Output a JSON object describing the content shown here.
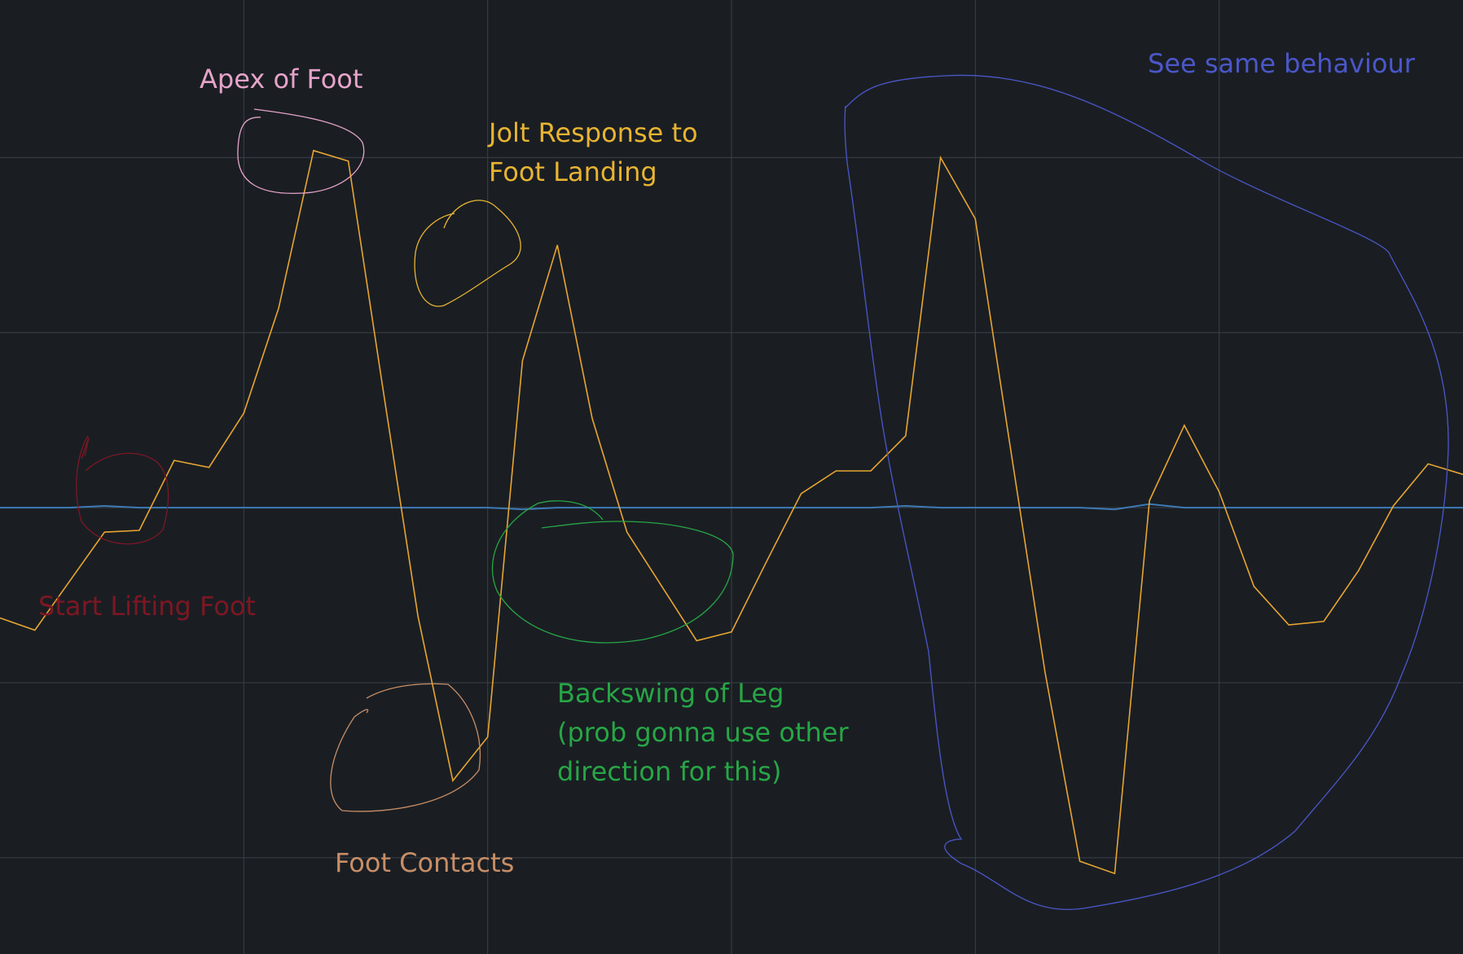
{
  "chart_data": {
    "type": "line",
    "title": "",
    "xlabel": "",
    "ylabel": "",
    "grid": true,
    "background_color": "#1a1e23",
    "grid_color": "#3a4047",
    "x_divisions": 6,
    "y_levels": [
      -2,
      -1,
      0,
      1,
      2
    ],
    "ylim": [
      -2.55,
      2.9
    ],
    "series": [
      {
        "color": "#e8a531",
        "values": [
          -0.63,
          -0.7,
          -0.42,
          -0.14,
          -0.13,
          0.27,
          0.23,
          0.54,
          1.14,
          2.04,
          1.98,
          0.67,
          -0.62,
          -1.56,
          -1.31,
          0.84,
          1.5,
          0.51,
          -0.14,
          -0.45,
          -0.76,
          -0.71,
          -0.31,
          0.08,
          0.21,
          0.21,
          0.41,
          2.0,
          1.65,
          0.35,
          -0.94,
          -2.02,
          -2.09,
          0.04,
          0.47,
          0.09,
          -0.45,
          -0.67,
          -0.65,
          -0.36,
          0.01,
          0.25,
          0.19
        ]
      },
      {
        "color": "#3d7ab5",
        "values": [
          0,
          0,
          0,
          0.01,
          0,
          0,
          0,
          0,
          0,
          0,
          0,
          0,
          0,
          0,
          0,
          -0.01,
          0,
          0,
          0,
          0,
          0,
          0,
          0,
          0,
          0,
          0,
          0.01,
          0,
          0,
          0,
          0,
          0,
          -0.01,
          0.02,
          0,
          0,
          0,
          0,
          0,
          0,
          0,
          0,
          0
        ]
      }
    ],
    "annotations": [
      {
        "lines": [
          "Apex of Foot"
        ],
        "color": "#e6a3c9"
      },
      {
        "lines": [
          "Jolt Response to",
          "Foot Landing"
        ],
        "color": "#e8b431"
      },
      {
        "lines": [
          "Start Lifting Foot"
        ],
        "color": "#7d1723"
      },
      {
        "lines": [
          "Foot Contacts"
        ],
        "color": "#c88e66"
      },
      {
        "lines": [
          "Backswing of Leg",
          "(prob gonna use other",
          "direction for this)"
        ],
        "color": "#27a645"
      },
      {
        "lines": [
          "See same behaviour"
        ],
        "color": "#4b57c9"
      }
    ]
  }
}
